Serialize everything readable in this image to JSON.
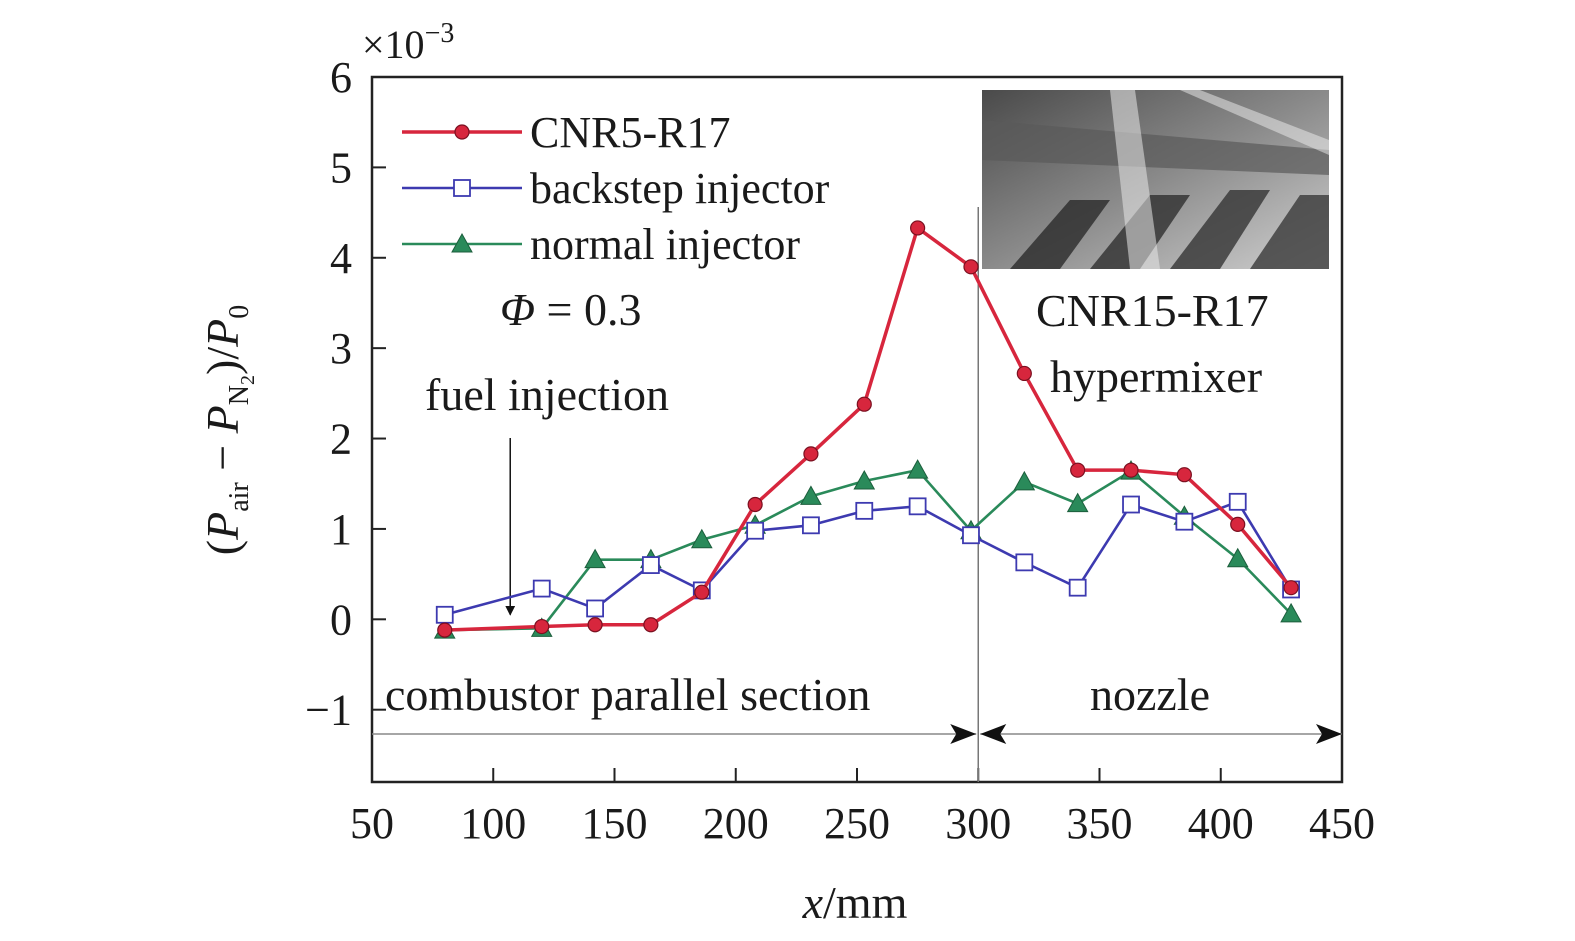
{
  "chart_data": {
    "type": "line",
    "xlabel": "x/mm",
    "ylabel": "(Pair − PN2)/P0",
    "ylabel_parts": {
      "open": "(",
      "p1": "P",
      "sub1": "air",
      "minus": " − ",
      "p2": "P",
      "sub2": "N",
      "subsub2": "2",
      "close": ")/",
      "p3": "P",
      "sub3": "0"
    },
    "y_multiplier": "×10⁻³",
    "y_multiplier_parts": {
      "base": "×10",
      "exp": "−3"
    },
    "xlim": [
      50,
      450
    ],
    "ylim": [
      -1.8,
      6
    ],
    "x_ticks": [
      50,
      100,
      150,
      200,
      250,
      300,
      350,
      400,
      450
    ],
    "x_tick_labels": [
      "50",
      "100",
      "150",
      "200",
      "250",
      "300",
      "350",
      "400",
      "450"
    ],
    "y_ticks": [
      -1,
      0,
      1,
      2,
      3,
      4,
      5,
      6
    ],
    "y_tick_labels": [
      "−1",
      "0",
      "1",
      "2",
      "3",
      "4",
      "5",
      "6"
    ],
    "grid": false,
    "legend_position": "top-left",
    "series": [
      {
        "name": "CNR5-R17",
        "color": "#d7263d",
        "marker": "circle-filled",
        "x": [
          80,
          120,
          142,
          165,
          186,
          208,
          231,
          253,
          275,
          297,
          319,
          341,
          363,
          385,
          407,
          429
        ],
        "y": [
          -0.12,
          -0.08,
          -0.06,
          -0.06,
          0.3,
          1.27,
          1.83,
          2.38,
          4.33,
          3.9,
          2.72,
          1.65,
          1.65,
          1.6,
          1.05,
          0.35
        ]
      },
      {
        "name": "backstep injector",
        "color": "#3d3ab0",
        "marker": "square-open",
        "x": [
          80,
          120,
          142,
          165,
          186,
          208,
          231,
          253,
          275,
          297,
          319,
          341,
          363,
          385,
          407,
          429
        ],
        "y": [
          0.05,
          0.34,
          0.12,
          0.6,
          0.32,
          0.98,
          1.04,
          1.2,
          1.25,
          0.93,
          0.63,
          0.35,
          1.27,
          1.08,
          1.3,
          0.33
        ]
      },
      {
        "name": "normal injector",
        "color": "#2a8a5a",
        "marker": "triangle-filled",
        "x": [
          80,
          120,
          142,
          165,
          186,
          208,
          231,
          253,
          275,
          297,
          319,
          341,
          363,
          385,
          407,
          429
        ],
        "y": [
          -0.12,
          -0.1,
          0.66,
          0.66,
          0.88,
          1.04,
          1.36,
          1.53,
          1.65,
          0.98,
          1.52,
          1.28,
          1.64,
          1.14,
          0.67,
          0.06
        ]
      }
    ],
    "annotations": {
      "phi_symbol": "Φ",
      "phi_rest": " = 0.3",
      "fuel_injection": "fuel injection",
      "fuel_injection_arrow_x": 107,
      "section_divider_x": 300,
      "combustor_label": "combustor parallel section",
      "nozzle_label": "nozzle",
      "inset_line1": "CNR15-R17",
      "inset_line2": "hypermixer"
    }
  }
}
